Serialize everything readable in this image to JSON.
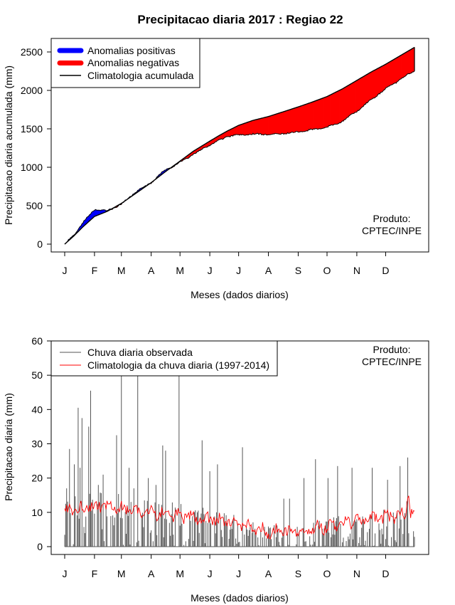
{
  "title": "Precipitacao diaria 2017 : Regiao 22",
  "product_note": [
    "Produto:",
    "CPTEC/INPE"
  ],
  "months": [
    "J",
    "F",
    "M",
    "A",
    "M",
    "J",
    "J",
    "A",
    "S",
    "O",
    "N",
    "D"
  ],
  "month_start_days": [
    1,
    32,
    60,
    91,
    121,
    152,
    182,
    213,
    244,
    274,
    305,
    335
  ],
  "colors": {
    "positive": "#0000ff",
    "negative": "#ff0000",
    "observed": "#555555",
    "climatology": "#ff0000",
    "axis": "#000000"
  },
  "chart_data": [
    {
      "type": "area",
      "title": "Precipitacao diaria 2017 : Regiao 22",
      "xlabel": "Meses (dados diarios)",
      "ylabel": "Precipitacao diaria acumulada (mm)",
      "xlim": [
        1,
        365
      ],
      "ylim": [
        0,
        2550
      ],
      "yticks": [
        0,
        500,
        1000,
        1500,
        2000,
        2500
      ],
      "legend_position": "top-left",
      "legend": [
        {
          "label": "Anomalias positivas",
          "color": "#0000ff",
          "style": "thick"
        },
        {
          "label": "Anomalias negativas",
          "color": "#ff0000",
          "style": "thick"
        },
        {
          "label": "Climatologia acumulada",
          "color": "#000000",
          "style": "line"
        }
      ],
      "x": [
        1,
        10,
        20,
        32,
        45,
        60,
        75,
        91,
        105,
        121,
        135,
        152,
        160,
        170,
        182,
        197,
        213,
        228,
        244,
        259,
        274,
        290,
        305,
        320,
        335,
        350,
        365
      ],
      "climatology_accumulated": [
        0,
        100,
        225,
        360,
        425,
        530,
        660,
        800,
        935,
        1080,
        1210,
        1340,
        1400,
        1470,
        1545,
        1610,
        1660,
        1720,
        1785,
        1850,
        1920,
        2020,
        2130,
        2240,
        2340,
        2450,
        2560
      ],
      "observed_accumulated": [
        0,
        110,
        280,
        450,
        430,
        520,
        680,
        800,
        960,
        1060,
        1170,
        1290,
        1340,
        1400,
        1420,
        1430,
        1430,
        1440,
        1460,
        1490,
        1520,
        1600,
        1730,
        1880,
        2020,
        2140,
        2260
      ]
    },
    {
      "type": "line",
      "xlabel": "Meses (dados diarios)",
      "ylabel": "Precipitacao diaria (mm)",
      "xlim": [
        1,
        365
      ],
      "ylim": [
        0,
        60
      ],
      "yticks": [
        0,
        10,
        20,
        30,
        40,
        50,
        60
      ],
      "legend_position": "top-left",
      "legend": [
        {
          "label": "Chuva diaria observada",
          "color": "#555555",
          "style": "line"
        },
        {
          "label": "Climatologia da chuva diaria (1997-2014)",
          "color": "#ff0000",
          "style": "line"
        }
      ],
      "observed_peaks": [
        {
          "day": 2,
          "value": 12.5
        },
        {
          "day": 3,
          "value": 17
        },
        {
          "day": 6,
          "value": 28.5
        },
        {
          "day": 11,
          "value": 24
        },
        {
          "day": 15,
          "value": 40.5
        },
        {
          "day": 17,
          "value": 23
        },
        {
          "day": 19,
          "value": 37.5
        },
        {
          "day": 26,
          "value": 35
        },
        {
          "day": 28,
          "value": 45.5
        },
        {
          "day": 36,
          "value": 18
        },
        {
          "day": 41,
          "value": 21
        },
        {
          "day": 55,
          "value": 32.5
        },
        {
          "day": 60,
          "value": 58
        },
        {
          "day": 68,
          "value": 23
        },
        {
          "day": 73,
          "value": 17
        },
        {
          "day": 77,
          "value": 57
        },
        {
          "day": 88,
          "value": 20
        },
        {
          "day": 96,
          "value": 18
        },
        {
          "day": 103,
          "value": 29.5
        },
        {
          "day": 106,
          "value": 28
        },
        {
          "day": 120,
          "value": 58
        },
        {
          "day": 144,
          "value": 31
        },
        {
          "day": 152,
          "value": 22
        },
        {
          "day": 160,
          "value": 24
        },
        {
          "day": 186,
          "value": 29
        },
        {
          "day": 229,
          "value": 14
        },
        {
          "day": 235,
          "value": 14
        },
        {
          "day": 250,
          "value": 20
        },
        {
          "day": 262,
          "value": 25.5
        },
        {
          "day": 275,
          "value": 20
        },
        {
          "day": 285,
          "value": 23.5
        },
        {
          "day": 300,
          "value": 23
        },
        {
          "day": 321,
          "value": 23
        },
        {
          "day": 337,
          "value": 19.5
        },
        {
          "day": 350,
          "value": 23.5
        },
        {
          "day": 358,
          "value": 26
        }
      ],
      "climatology_daily": [
        {
          "day": 1,
          "value": 10
        },
        {
          "day": 32,
          "value": 12
        },
        {
          "day": 60,
          "value": 11
        },
        {
          "day": 91,
          "value": 10
        },
        {
          "day": 121,
          "value": 9
        },
        {
          "day": 152,
          "value": 8
        },
        {
          "day": 182,
          "value": 6.5
        },
        {
          "day": 213,
          "value": 4.5
        },
        {
          "day": 244,
          "value": 4.5
        },
        {
          "day": 274,
          "value": 6
        },
        {
          "day": 305,
          "value": 7.5
        },
        {
          "day": 335,
          "value": 8.5
        },
        {
          "day": 358,
          "value": 9.5
        },
        {
          "day": 365,
          "value": 9
        }
      ]
    }
  ]
}
